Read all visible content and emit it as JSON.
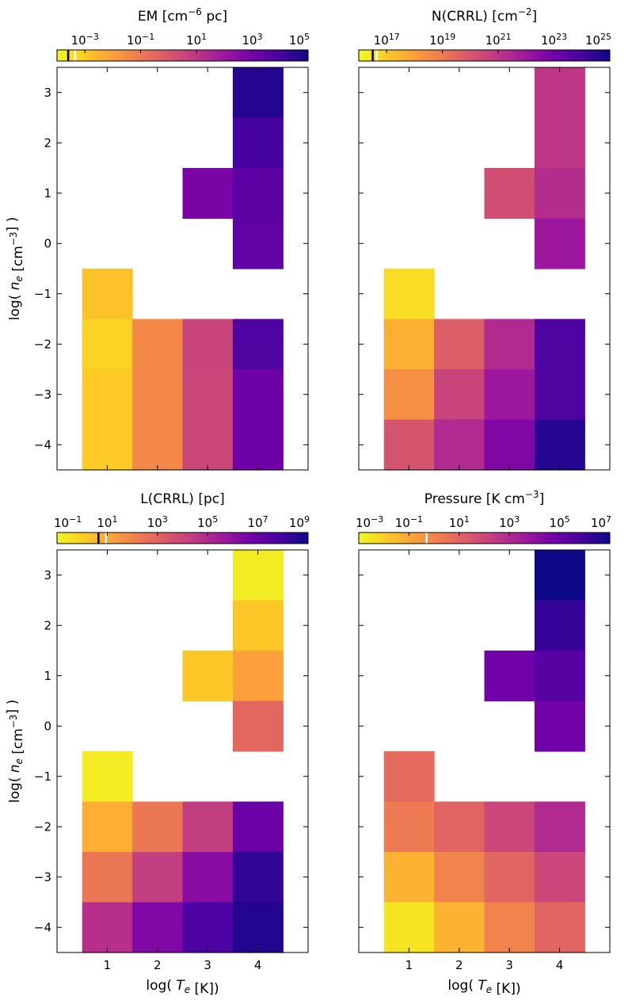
{
  "colors": {
    "colormap": [
      "#f0f921",
      "#fdca26",
      "#fb9f3a",
      "#ed7953",
      "#d8576b",
      "#bd3786",
      "#9c179e",
      "#7201a8",
      "#46039f",
      "#0d0887"
    ],
    "marker_dark": "#000000",
    "marker_light": "#ffffff"
  },
  "chart_data": [
    {
      "type": "heatmap",
      "title": "EM [cm$^{-6}$ pc]",
      "title_main": "EM [cm",
      "title_sup": "−6",
      "title_tail": " pc]",
      "colorbar": {
        "scale": "log",
        "min_exp": -4,
        "max_exp": 5,
        "tick_exps": [
          -3,
          -1,
          1,
          3,
          5
        ],
        "tick_labels": [
          "10^-3",
          "10^-1",
          "10^1",
          "10^3",
          "10^5"
        ],
        "markers": [
          -3.6,
          -3.35
        ]
      },
      "xlabel": "",
      "ylabel": "log( n_e [cm^-3] )",
      "xlim": [
        0,
        5
      ],
      "ylim": [
        -4.5,
        3.5
      ],
      "x_ticks": [
        1,
        2,
        3,
        4
      ],
      "x_tick_labels": [
        "",
        "",
        "",
        ""
      ],
      "y_ticks": [
        3,
        2,
        1,
        0,
        -1,
        -2,
        -3,
        -4
      ],
      "y_tick_labels": [
        "3",
        "2",
        "1",
        "0",
        "−1",
        "−2",
        "−3",
        "−4"
      ],
      "cells": [
        {
          "x": 4,
          "y": 3,
          "value": 4.6
        },
        {
          "x": 4,
          "y": 2,
          "value": 4.0
        },
        {
          "x": 3,
          "y": 1,
          "value": 2.8
        },
        {
          "x": 4,
          "y": 1,
          "value": 3.5
        },
        {
          "x": 4,
          "y": 0,
          "value": 3.4
        },
        {
          "x": 1,
          "y": -1,
          "value": -2.8
        },
        {
          "x": 1,
          "y": -2,
          "value": -3.2
        },
        {
          "x": 2,
          "y": -2,
          "value": -1.4
        },
        {
          "x": 3,
          "y": -2,
          "value": 0.6
        },
        {
          "x": 4,
          "y": -2,
          "value": 3.8
        },
        {
          "x": 1,
          "y": -3,
          "value": -3.0
        },
        {
          "x": 2,
          "y": -3,
          "value": -1.4
        },
        {
          "x": 3,
          "y": -3,
          "value": 0.5
        },
        {
          "x": 4,
          "y": -3,
          "value": 3.1
        },
        {
          "x": 1,
          "y": -4,
          "value": -3.0
        },
        {
          "x": 2,
          "y": -4,
          "value": -1.4
        },
        {
          "x": 3,
          "y": -4,
          "value": 0.5
        },
        {
          "x": 4,
          "y": -4,
          "value": 3.1
        }
      ]
    },
    {
      "type": "heatmap",
      "title": "N(CRRL) [cm$^{-2}$]",
      "title_main": "N(CRRL) [cm",
      "title_sup": "−2",
      "title_tail": "]",
      "colorbar": {
        "scale": "log",
        "min_exp": 16,
        "max_exp": 25,
        "tick_exps": [
          17,
          19,
          21,
          23,
          25
        ],
        "tick_labels": [
          "10^17",
          "10^19",
          "10^21",
          "10^23",
          "10^25"
        ],
        "markers": [
          16.5,
          16.65
        ]
      },
      "xlabel": "",
      "ylabel": "",
      "xlim": [
        0,
        5
      ],
      "ylim": [
        -4.5,
        3.5
      ],
      "x_ticks": [
        1,
        2,
        3,
        4
      ],
      "x_tick_labels": [
        "",
        "",
        "",
        ""
      ],
      "y_ticks": [
        3,
        2,
        1,
        0,
        -1,
        -2,
        -3,
        -4
      ],
      "y_tick_labels": [
        "",
        "",
        "",
        "",
        "",
        "",
        "",
        ""
      ],
      "cells": [
        {
          "x": 4,
          "y": 3,
          "value": 21.0
        },
        {
          "x": 4,
          "y": 2,
          "value": 21.0
        },
        {
          "x": 3,
          "y": 1,
          "value": 20.3
        },
        {
          "x": 4,
          "y": 1,
          "value": 21.3
        },
        {
          "x": 4,
          "y": 0,
          "value": 22.0
        },
        {
          "x": 1,
          "y": -1,
          "value": 16.6
        },
        {
          "x": 1,
          "y": -2,
          "value": 17.6
        },
        {
          "x": 2,
          "y": -2,
          "value": 19.8
        },
        {
          "x": 3,
          "y": -2,
          "value": 21.4
        },
        {
          "x": 4,
          "y": -2,
          "value": 23.8
        },
        {
          "x": 1,
          "y": -3,
          "value": 18.4
        },
        {
          "x": 2,
          "y": -3,
          "value": 20.6
        },
        {
          "x": 3,
          "y": -3,
          "value": 22.0
        },
        {
          "x": 4,
          "y": -3,
          "value": 23.8
        },
        {
          "x": 1,
          "y": -4,
          "value": 20.1
        },
        {
          "x": 2,
          "y": -4,
          "value": 21.4
        },
        {
          "x": 3,
          "y": -4,
          "value": 22.7
        },
        {
          "x": 4,
          "y": -4,
          "value": 24.6
        }
      ]
    },
    {
      "type": "heatmap",
      "title": "L(CRRL) [pc]",
      "title_main": "L(CRRL) [pc]",
      "title_sup": "",
      "title_tail": "",
      "colorbar": {
        "scale": "log",
        "min_exp": -1,
        "max_exp": 9,
        "tick_exps": [
          -1,
          1,
          3,
          5,
          7,
          9
        ],
        "tick_labels": [
          "10^-1",
          "10^1",
          "10^3",
          "10^5",
          "10^7",
          "10^9"
        ],
        "markers": [
          0.65,
          0.95
        ]
      },
      "xlabel": "log( T_e [K])",
      "ylabel": "log( n_e [cm^-3] )",
      "xlim": [
        0,
        5
      ],
      "ylim": [
        -4.5,
        3.5
      ],
      "x_ticks": [
        1,
        2,
        3,
        4
      ],
      "x_tick_labels": [
        "1",
        "2",
        "3",
        "4"
      ],
      "y_ticks": [
        3,
        2,
        1,
        0,
        -1,
        -2,
        -3,
        -4
      ],
      "y_tick_labels": [
        "3",
        "2",
        "1",
        "0",
        "−1",
        "−2",
        "−3",
        "−4"
      ],
      "cells": [
        {
          "x": 4,
          "y": 3,
          "value": -0.7
        },
        {
          "x": 4,
          "y": 2,
          "value": 0.2
        },
        {
          "x": 3,
          "y": 1,
          "value": 0.2
        },
        {
          "x": 4,
          "y": 1,
          "value": 1.2
        },
        {
          "x": 4,
          "y": 0,
          "value": 2.9
        },
        {
          "x": 1,
          "y": -1,
          "value": -0.7
        },
        {
          "x": 1,
          "y": -2,
          "value": 0.8
        },
        {
          "x": 2,
          "y": -2,
          "value": 2.4
        },
        {
          "x": 3,
          "y": -2,
          "value": 4.3
        },
        {
          "x": 4,
          "y": -2,
          "value": 7.0
        },
        {
          "x": 1,
          "y": -3,
          "value": 2.4
        },
        {
          "x": 2,
          "y": -3,
          "value": 4.3
        },
        {
          "x": 3,
          "y": -3,
          "value": 6.2
        },
        {
          "x": 4,
          "y": -3,
          "value": 8.3
        },
        {
          "x": 1,
          "y": -4,
          "value": 4.8
        },
        {
          "x": 2,
          "y": -4,
          "value": 6.4
        },
        {
          "x": 3,
          "y": -4,
          "value": 7.7
        },
        {
          "x": 4,
          "y": -4,
          "value": 8.6
        }
      ]
    },
    {
      "type": "heatmap",
      "title": "Pressure [K cm$^{-3}$]",
      "title_main": "Pressure [K cm",
      "title_sup": "−3",
      "title_tail": "]",
      "colorbar": {
        "scale": "log",
        "min_exp": -3,
        "max_exp": 7,
        "tick_exps": [
          -3,
          -1,
          1,
          3,
          5,
          7
        ],
        "tick_labels": [
          "10^-3",
          "10^-1",
          "10^1",
          "10^3",
          "10^5",
          "10^7"
        ],
        "markers": [
          -0.3
        ]
      },
      "xlabel": "log( T_e [K])",
      "ylabel": "",
      "xlim": [
        0,
        5
      ],
      "ylim": [
        -4.5,
        3.5
      ],
      "x_ticks": [
        1,
        2,
        3,
        4
      ],
      "x_tick_labels": [
        "1",
        "2",
        "3",
        "4"
      ],
      "y_ticks": [
        3,
        2,
        1,
        0,
        -1,
        -2,
        -3,
        -4
      ],
      "y_tick_labels": [
        "",
        "",
        "",
        "",
        "",
        "",
        "",
        ""
      ],
      "cells": [
        {
          "x": 4,
          "y": 3,
          "value": 7.0
        },
        {
          "x": 4,
          "y": 2,
          "value": 6.2
        },
        {
          "x": 3,
          "y": 1,
          "value": 4.8
        },
        {
          "x": 4,
          "y": 1,
          "value": 5.4
        },
        {
          "x": 4,
          "y": 0,
          "value": 4.8
        },
        {
          "x": 1,
          "y": -1,
          "value": 0.8
        },
        {
          "x": 1,
          "y": -2,
          "value": 0.3
        },
        {
          "x": 2,
          "y": -2,
          "value": 1.0
        },
        {
          "x": 3,
          "y": -2,
          "value": 2.0
        },
        {
          "x": 4,
          "y": -2,
          "value": 3.0
        },
        {
          "x": 1,
          "y": -3,
          "value": -1.3
        },
        {
          "x": 2,
          "y": -3,
          "value": 0.0
        },
        {
          "x": 3,
          "y": -3,
          "value": 1.0
        },
        {
          "x": 4,
          "y": -3,
          "value": 2.0
        },
        {
          "x": 1,
          "y": -4,
          "value": -2.5
        },
        {
          "x": 2,
          "y": -4,
          "value": -1.3
        },
        {
          "x": 3,
          "y": -4,
          "value": 0.0
        },
        {
          "x": 4,
          "y": -4,
          "value": 1.0
        }
      ]
    }
  ]
}
